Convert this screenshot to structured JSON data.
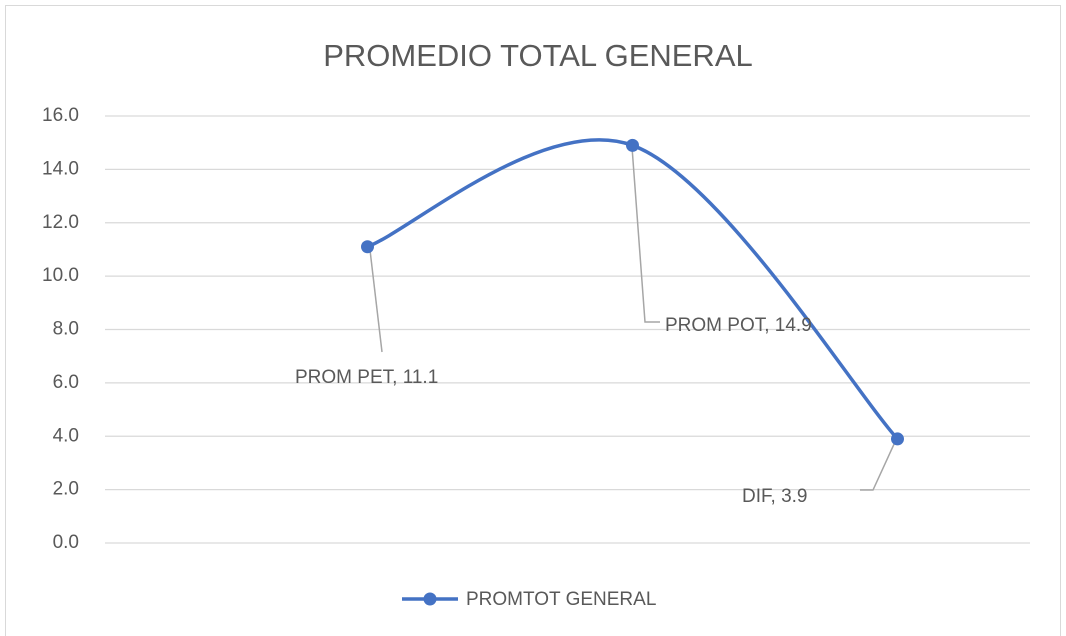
{
  "chart_data": {
    "type": "line",
    "title": "PROMEDIO TOTAL GENERAL",
    "categories": [
      "PROM PET",
      "PROM POT",
      "DIF"
    ],
    "series": [
      {
        "name": "PROMTOT GENERAL",
        "color": "#4472c4",
        "values": [
          11.1,
          14.9,
          3.9
        ]
      }
    ],
    "ylim": [
      0,
      16
    ],
    "yticks": [
      {
        "value": 0,
        "label": "0.0"
      },
      {
        "value": 2,
        "label": "2.0"
      },
      {
        "value": 4,
        "label": "4.0"
      },
      {
        "value": 6,
        "label": "6.0"
      },
      {
        "value": 8,
        "label": "8.0"
      },
      {
        "value": 10,
        "label": "10.0"
      },
      {
        "value": 12,
        "label": "12.0"
      },
      {
        "value": 14,
        "label": "14.0"
      },
      {
        "value": 16,
        "label": "16.0"
      }
    ],
    "grid": true,
    "smooth": true,
    "legend": "bottom"
  }
}
